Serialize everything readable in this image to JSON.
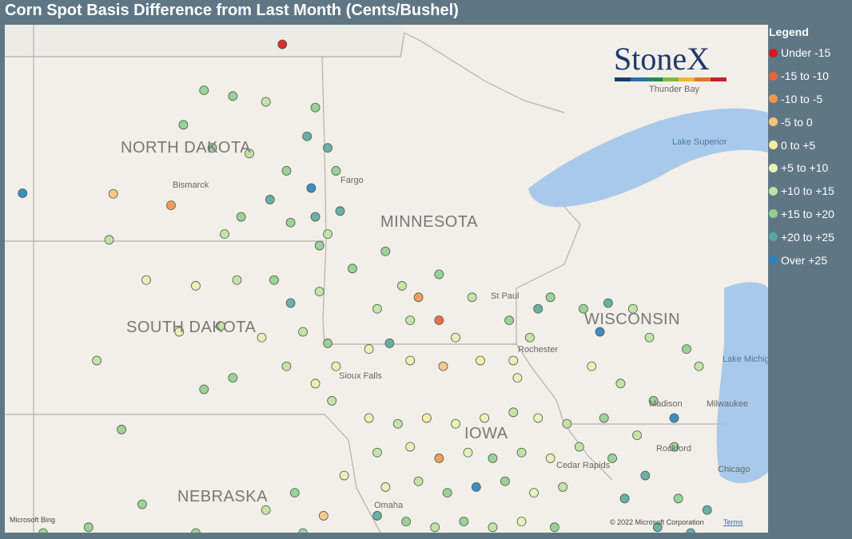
{
  "title": "Corn Spot Basis Difference from Last Month (Cents/Bushel)",
  "legend": {
    "title": "Legend",
    "items": [
      {
        "label": "Under -15",
        "color": "#d7191c"
      },
      {
        "label": "-15 to -10",
        "color": "#e8623a"
      },
      {
        "label": "-10 to -5",
        "color": "#f0954e"
      },
      {
        "label": "-5 to 0",
        "color": "#f7c57f"
      },
      {
        "label": "0 to +5",
        "color": "#f6ec9f"
      },
      {
        "label": "+5 to +10",
        "color": "#e6f2b2"
      },
      {
        "label": "+10 to +15",
        "color": "#bfe2a0"
      },
      {
        "label": "+15 to +20",
        "color": "#92cd8e"
      },
      {
        "label": "+20 to +25",
        "color": "#5aa9a0"
      },
      {
        "label": "Over +25",
        "color": "#2b83ba"
      }
    ]
  },
  "logo": "StoneX",
  "labels": {
    "states": [
      "NORTH DAKOTA",
      "MINNESOTA",
      "SOUTH DAKOTA",
      "WISCONSIN",
      "NEBRASKA",
      "IOWA"
    ],
    "places": [
      "Bismarck",
      "Fargo",
      "Thunder Bay",
      "St Paul",
      "Rochester",
      "Sioux Falls",
      "Madison",
      "Milwaukee",
      "Rockford",
      "Cedar Rapids",
      "Chicago",
      "Omaha"
    ],
    "water": [
      "Lake Superior",
      "Lake Michigan"
    ]
  },
  "attribution": {
    "provider": "Microsoft Bing",
    "copyright": "© 2022 Microsoft Corporation",
    "terms": "Terms"
  },
  "points": [
    [
      -98.1,
      49.4,
      0
    ],
    [
      -100.0,
      48.6,
      7
    ],
    [
      -99.3,
      48.5,
      7
    ],
    [
      -98.5,
      48.4,
      6
    ],
    [
      -97.3,
      48.3,
      7
    ],
    [
      -97.5,
      47.8,
      8
    ],
    [
      -97.0,
      47.6,
      8
    ],
    [
      -100.5,
      48.0,
      7
    ],
    [
      -99.8,
      47.6,
      7
    ],
    [
      -98.9,
      47.5,
      6
    ],
    [
      -98.0,
      47.2,
      7
    ],
    [
      -97.4,
      46.9,
      9
    ],
    [
      -98.4,
      46.7,
      8
    ],
    [
      -99.1,
      46.4,
      7
    ],
    [
      -97.9,
      46.3,
      7
    ],
    [
      -97.3,
      46.4,
      8
    ],
    [
      -104.4,
      46.81,
      9
    ],
    [
      -102.2,
      46.8,
      3
    ],
    [
      -100.8,
      46.6,
      2
    ],
    [
      -99.5,
      46.1,
      6
    ],
    [
      -102.3,
      46.0,
      6
    ],
    [
      -97.2,
      45.9,
      7
    ],
    [
      -96.8,
      47.2,
      7
    ],
    [
      -96.7,
      46.5,
      8
    ],
    [
      -97.0,
      46.1,
      6
    ],
    [
      -101.4,
      45.3,
      5
    ],
    [
      -100.2,
      45.2,
      5
    ],
    [
      -99.2,
      45.3,
      6
    ],
    [
      -98.3,
      45.3,
      7
    ],
    [
      -97.9,
      44.9,
      8
    ],
    [
      -97.2,
      45.1,
      6
    ],
    [
      -100.6,
      44.4,
      5
    ],
    [
      -99.6,
      44.5,
      6
    ],
    [
      -98.6,
      44.3,
      5
    ],
    [
      -97.6,
      44.4,
      6
    ],
    [
      -97.0,
      44.2,
      7
    ],
    [
      -96.8,
      43.8,
      5
    ],
    [
      -98.0,
      43.8,
      6
    ],
    [
      -99.3,
      43.6,
      7
    ],
    [
      -102.6,
      43.9,
      6
    ],
    [
      -100.0,
      43.4,
      7
    ],
    [
      -97.3,
      43.5,
      4
    ],
    [
      -96.9,
      43.2,
      6
    ],
    [
      -102.0,
      42.7,
      7
    ],
    [
      -96.4,
      45.5,
      7
    ],
    [
      -95.6,
      45.8,
      7
    ],
    [
      -95.2,
      45.2,
      6
    ],
    [
      -94.8,
      45.0,
      2
    ],
    [
      -94.3,
      45.4,
      7
    ],
    [
      -93.5,
      45.0,
      6
    ],
    [
      -95.8,
      44.8,
      6
    ],
    [
      -95.0,
      44.6,
      6
    ],
    [
      -94.3,
      44.6,
      1
    ],
    [
      -93.9,
      44.3,
      5
    ],
    [
      -95.5,
      44.2,
      8
    ],
    [
      -96.0,
      44.1,
      5
    ],
    [
      -95.0,
      43.9,
      5
    ],
    [
      -94.2,
      43.8,
      3
    ],
    [
      -93.3,
      43.9,
      4
    ],
    [
      -92.5,
      43.9,
      5
    ],
    [
      -92.1,
      44.3,
      6
    ],
    [
      -92.6,
      44.6,
      7
    ],
    [
      -91.9,
      44.8,
      8
    ],
    [
      -91.6,
      45.0,
      7
    ],
    [
      -92.4,
      43.6,
      5
    ],
    [
      -96.0,
      42.9,
      5
    ],
    [
      -95.3,
      42.8,
      6
    ],
    [
      -94.6,
      42.9,
      4
    ],
    [
      -93.9,
      42.8,
      5
    ],
    [
      -93.2,
      42.9,
      5
    ],
    [
      -92.5,
      43.0,
      6
    ],
    [
      -91.9,
      42.9,
      5
    ],
    [
      -91.2,
      42.8,
      6
    ],
    [
      -95.8,
      42.3,
      6
    ],
    [
      -95.0,
      42.4,
      5
    ],
    [
      -94.3,
      42.2,
      2
    ],
    [
      -93.6,
      42.3,
      5
    ],
    [
      -93.0,
      42.2,
      7
    ],
    [
      -92.3,
      42.3,
      6
    ],
    [
      -91.6,
      42.2,
      5
    ],
    [
      -90.9,
      42.4,
      6
    ],
    [
      -95.6,
      41.7,
      5
    ],
    [
      -94.8,
      41.8,
      6
    ],
    [
      -94.1,
      41.6,
      7
    ],
    [
      -93.4,
      41.7,
      9
    ],
    [
      -92.7,
      41.8,
      7
    ],
    [
      -92.0,
      41.6,
      5
    ],
    [
      -91.3,
      41.7,
      6
    ],
    [
      -95.8,
      41.2,
      8
    ],
    [
      -95.1,
      41.1,
      7
    ],
    [
      -94.4,
      41.0,
      6
    ],
    [
      -93.7,
      41.1,
      7
    ],
    [
      -93.0,
      41.0,
      6
    ],
    [
      -92.3,
      41.1,
      5
    ],
    [
      -91.5,
      41.0,
      7
    ],
    [
      -96.0,
      40.7,
      9
    ],
    [
      -95.3,
      40.7,
      9
    ],
    [
      -94.6,
      40.6,
      8
    ],
    [
      -93.8,
      40.6,
      9
    ],
    [
      -93.0,
      40.7,
      7
    ],
    [
      -98.5,
      41.3,
      6
    ],
    [
      -97.8,
      41.6,
      7
    ],
    [
      -97.1,
      41.2,
      3
    ],
    [
      -96.6,
      41.9,
      5
    ],
    [
      -97.6,
      40.9,
      7
    ],
    [
      -98.9,
      40.8,
      6
    ],
    [
      -100.2,
      40.9,
      7
    ],
    [
      -101.5,
      41.4,
      7
    ],
    [
      -102.8,
      41.0,
      7
    ],
    [
      -103.9,
      40.9,
      7
    ],
    [
      -96.5,
      40.6,
      6
    ],
    [
      -97.3,
      40.5,
      9
    ],
    [
      -90.8,
      44.8,
      7
    ],
    [
      -90.2,
      44.9,
      8
    ],
    [
      -89.6,
      44.8,
      6
    ],
    [
      -90.4,
      44.4,
      9
    ],
    [
      -89.2,
      44.3,
      6
    ],
    [
      -88.3,
      44.1,
      7
    ],
    [
      -88.0,
      43.8,
      6
    ],
    [
      -90.6,
      43.8,
      5
    ],
    [
      -89.9,
      43.5,
      6
    ],
    [
      -89.1,
      43.2,
      7
    ],
    [
      -88.6,
      42.9,
      9
    ],
    [
      -90.3,
      42.9,
      7
    ],
    [
      -89.5,
      42.6,
      6
    ],
    [
      -88.6,
      42.4,
      7
    ],
    [
      -90.1,
      42.2,
      7
    ],
    [
      -89.3,
      41.9,
      8
    ],
    [
      -88.5,
      41.5,
      7
    ],
    [
      -87.8,
      41.3,
      8
    ],
    [
      -89.8,
      41.5,
      8
    ],
    [
      -89.0,
      41.0,
      8
    ],
    [
      -88.2,
      40.9,
      8
    ],
    [
      -89.5,
      40.7,
      9
    ],
    [
      -88.9,
      40.6,
      7
    ]
  ]
}
